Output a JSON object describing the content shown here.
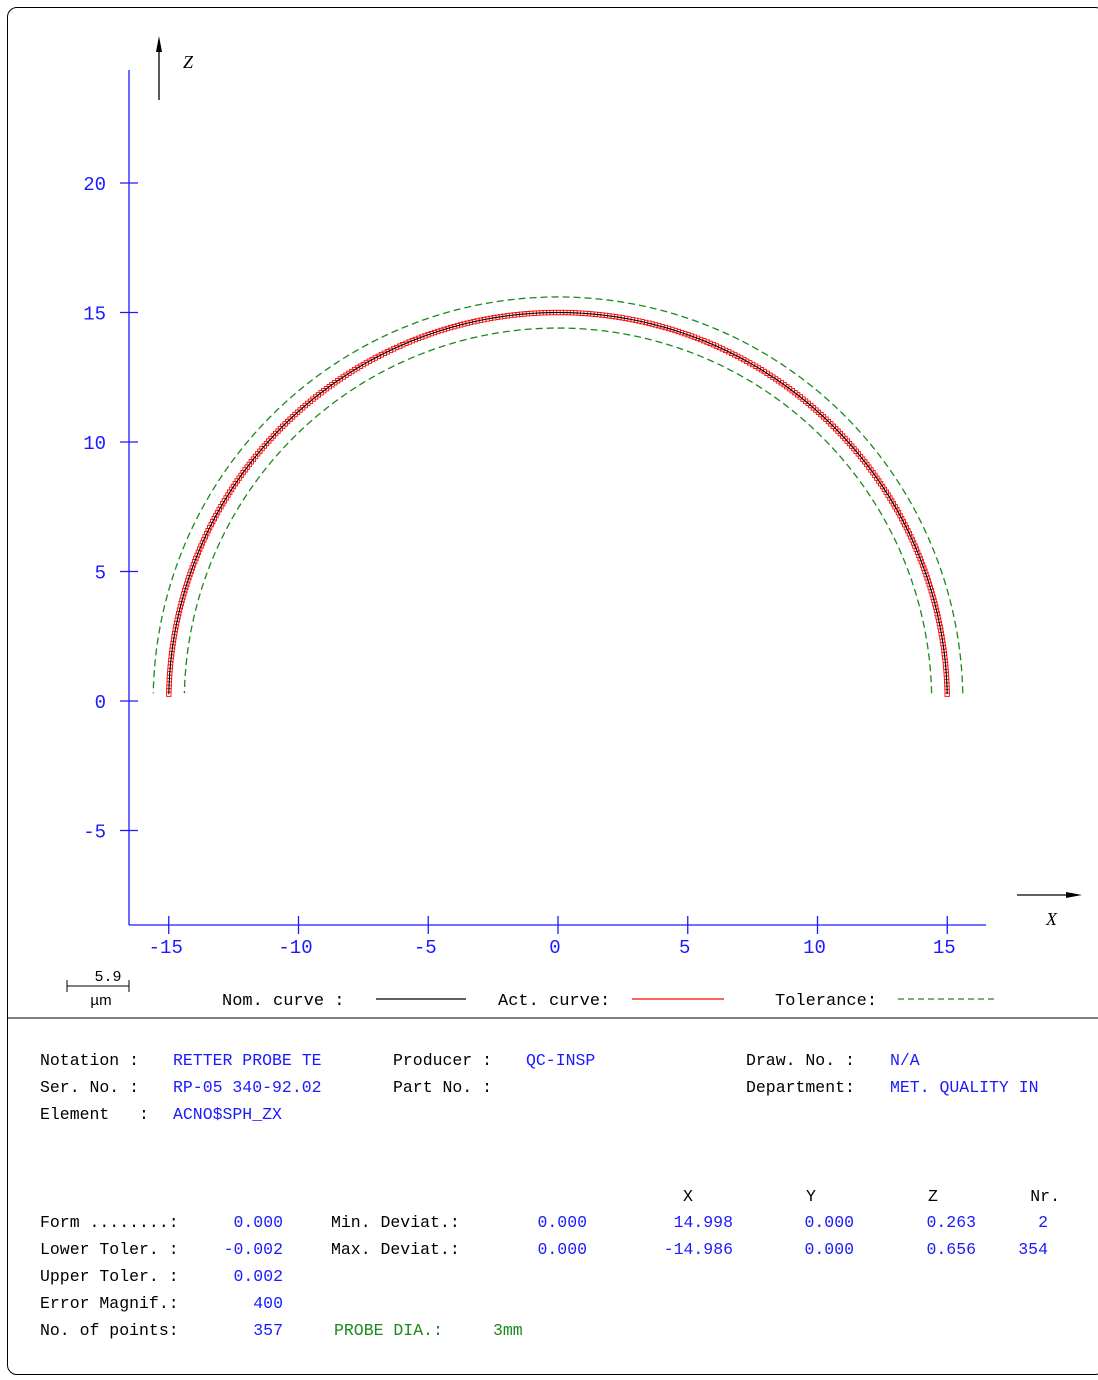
{
  "chart_data": {
    "type": "line",
    "xlabel": "X",
    "ylabel": "Z",
    "x_ticks": [
      "-15",
      "-10",
      "-5",
      "0",
      "5",
      "10",
      "15"
    ],
    "y_ticks": [
      "20",
      "15",
      "10",
      "5",
      "0",
      "-5"
    ],
    "xlim": [
      -16.6,
      16.6
    ],
    "ylim": [
      -8.7,
      24.8
    ],
    "nominal_radius": 15.0,
    "tolerance_offset": 0.6,
    "arc_start_z": 0.263,
    "arc_end_z": 0.263,
    "series": [
      {
        "name": "Nom. curve",
        "color": "#000000",
        "style": "solid"
      },
      {
        "name": "Act. curve",
        "color": "#ff0000",
        "style": "markers"
      },
      {
        "name": "Tolerance",
        "color": "#1a8a1a",
        "style": "dashed"
      }
    ],
    "scale_bar": {
      "value": "5.9",
      "unit": "µm"
    }
  },
  "legend": {
    "nom": "Nom. curve :",
    "act": "Act. curve:",
    "tol": "Tolerance:"
  },
  "info": {
    "notation_label": "Notation :",
    "notation_value": "RETTER PROBE TE",
    "producer_label": "Producer :",
    "producer_value": "QC-INSP",
    "drawno_label": "Draw. No. :",
    "drawno_value": "N/A",
    "serno_label": "Ser. No. :",
    "serno_value": "RP-05 340-92.02",
    "partno_label": "Part No. :",
    "department_label": "Department:",
    "department_value": "MET. QUALITY IN",
    "element_label": "Element   :",
    "element_value": "ACNO$SPH_ZX"
  },
  "stats": {
    "headers": {
      "x": "X",
      "y": "Y",
      "z": "Z",
      "nr": "Nr."
    },
    "form_label": "Form ........:",
    "form_value": "0.000",
    "lower_label": "Lower Toler. :",
    "lower_value": "-0.002",
    "upper_label": "Upper Toler. :",
    "upper_value": "0.002",
    "magnif_label": "Error Magnif.:",
    "magnif_value": "400",
    "points_label": "No. of points:",
    "points_value": "357",
    "probe_label": "PROBE DIA.:",
    "probe_value": "3mm",
    "min_label": "Min. Deviat.:",
    "min_value": "0.000",
    "min_x": "14.998",
    "min_y": "0.000",
    "min_z": "0.263",
    "min_nr": "2",
    "max_label": "Max. Deviat.:",
    "max_value": "0.000",
    "max_x": "-14.986",
    "max_y": "0.000",
    "max_z": "0.656",
    "max_nr": "354"
  }
}
